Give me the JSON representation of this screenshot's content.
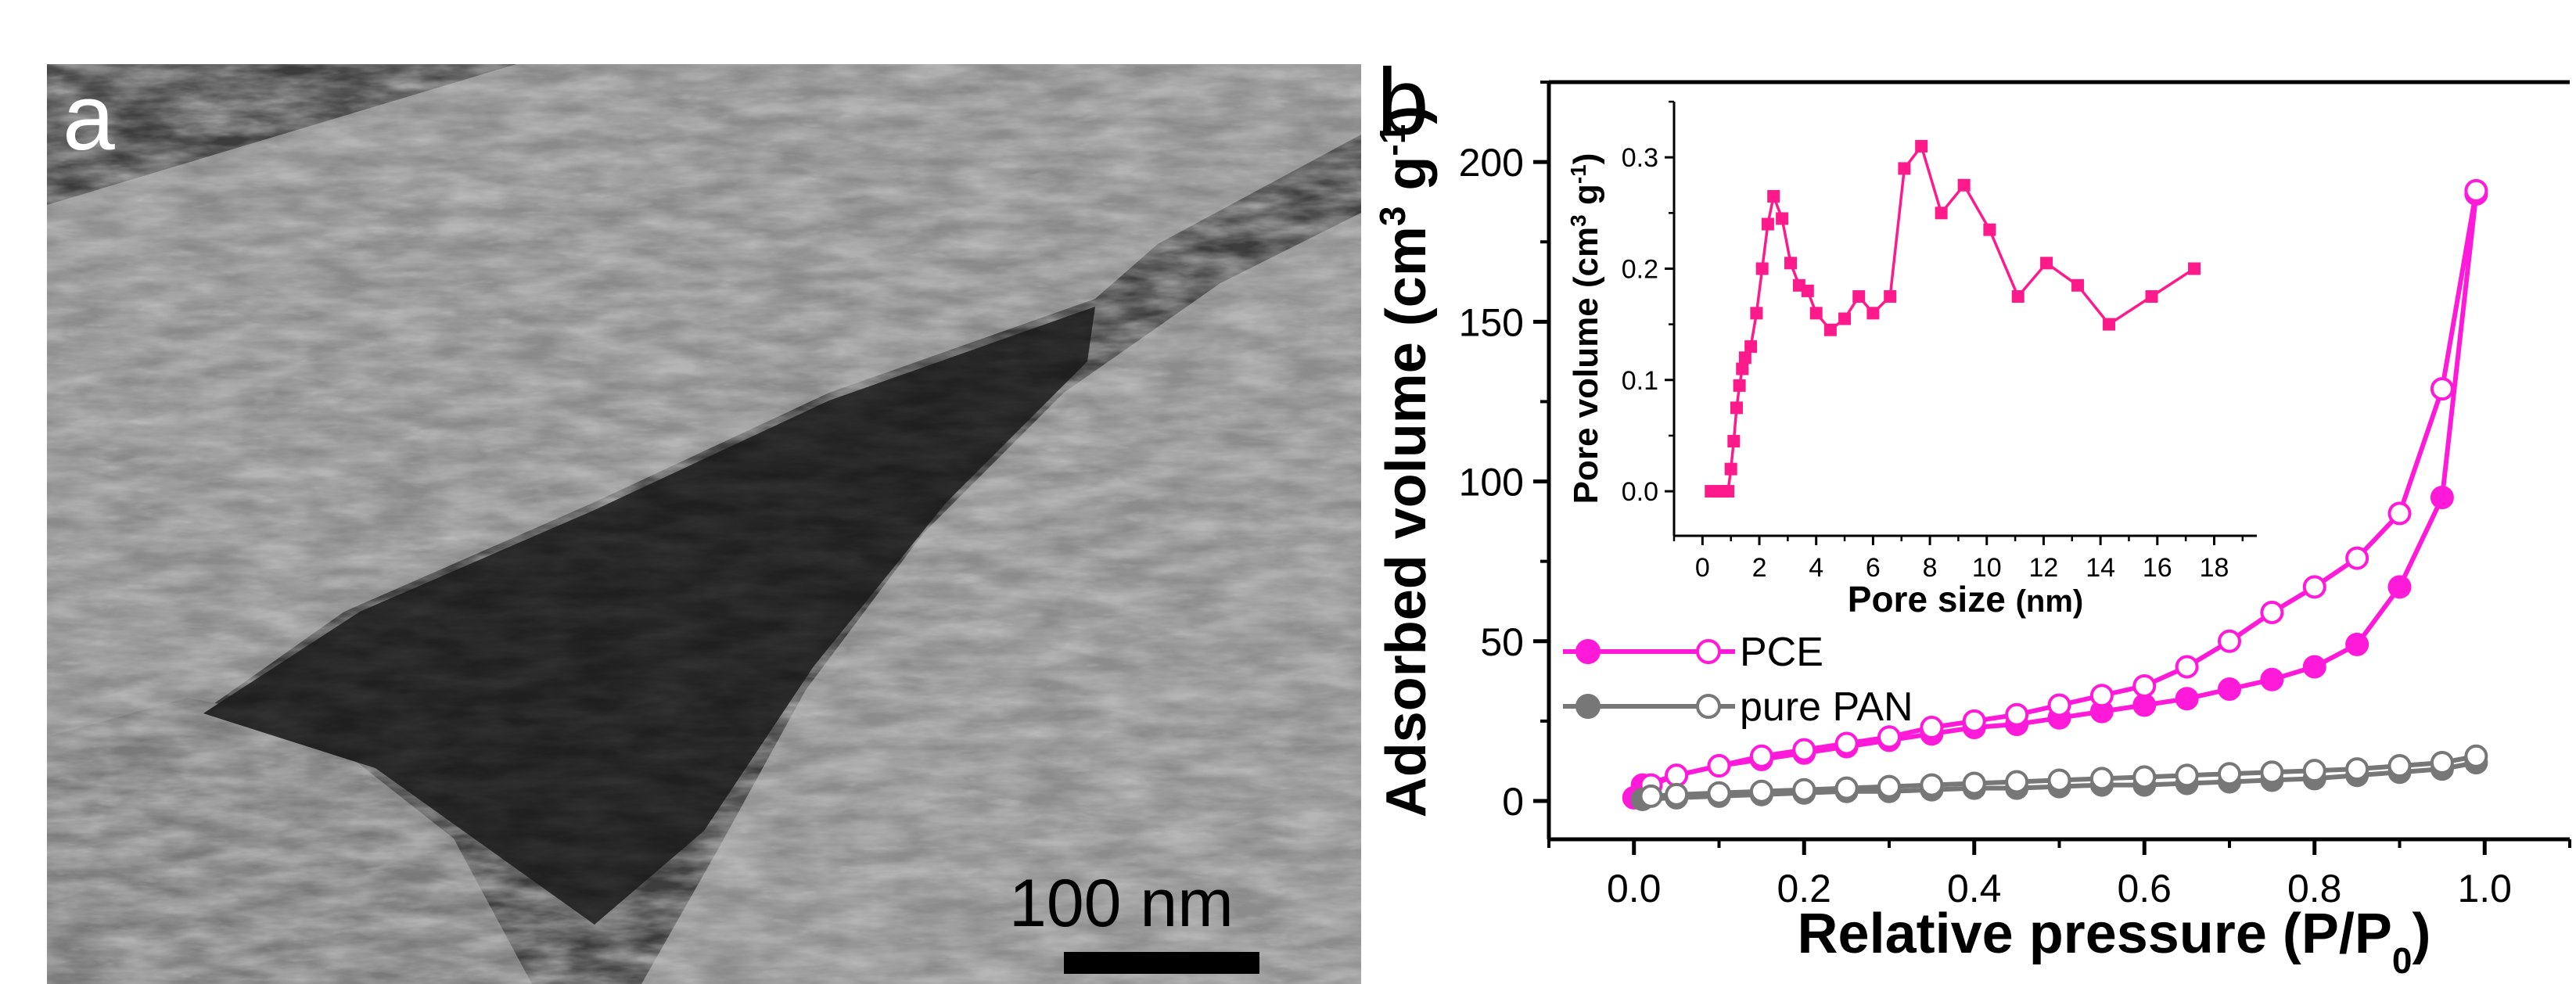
{
  "panel_a": {
    "letter": "a",
    "scale_label": "100 nm"
  },
  "panel_b": {
    "letter": "b"
  },
  "chart_data": [
    {
      "type": "line",
      "xlabel_main": "Relative pressure (P/P",
      "xlabel_sub": "0",
      "xlabel_end": ")",
      "ylabel_main": "Adsorbed volume (cm",
      "ylabel_sup1": "3",
      "ylabel_mid": " g",
      "ylabel_sup2": "-1",
      "ylabel_end": ")",
      "xlim": [
        -0.1,
        1.1
      ],
      "ylim": [
        -12,
        225
      ],
      "xticks": [
        "0.0",
        "0.2",
        "0.4",
        "0.6",
        "0.8",
        "1.0"
      ],
      "xtick_values": [
        0,
        0.2,
        0.4,
        0.6,
        0.8,
        1.0
      ],
      "yticks": [
        "0",
        "50",
        "100",
        "150",
        "200"
      ],
      "ytick_values": [
        0,
        50,
        100,
        150,
        200
      ],
      "legend_position": "left-middle",
      "series": [
        {
          "name": "PCE",
          "color": "#ff1ad9",
          "branch": "adsorption",
          "marker": "filled-circle",
          "x": [
            0.0,
            0.01,
            0.05,
            0.1,
            0.15,
            0.2,
            0.25,
            0.3,
            0.35,
            0.4,
            0.45,
            0.5,
            0.55,
            0.6,
            0.65,
            0.7,
            0.75,
            0.8,
            0.85,
            0.9,
            0.95,
            0.99
          ],
          "y": [
            1,
            5,
            8,
            11,
            13,
            15,
            17,
            19,
            21,
            23,
            24,
            26,
            28,
            30,
            32,
            35,
            38,
            42,
            49,
            67,
            95,
            190
          ]
        },
        {
          "name": "PCE",
          "color": "#ff1ad9",
          "branch": "desorption",
          "marker": "open-circle",
          "x": [
            0.99,
            0.95,
            0.9,
            0.85,
            0.8,
            0.75,
            0.7,
            0.65,
            0.6,
            0.55,
            0.5,
            0.45,
            0.4,
            0.35,
            0.3,
            0.25,
            0.2,
            0.15,
            0.1,
            0.05,
            0.02
          ],
          "y": [
            191,
            129,
            90,
            76,
            67,
            59,
            50,
            42,
            36,
            33,
            30,
            27,
            25,
            23,
            20,
            18,
            16,
            14,
            11,
            8,
            5
          ]
        },
        {
          "name": "pure PAN",
          "color": "#777777",
          "branch": "adsorption",
          "marker": "filled-circle",
          "x": [
            0.01,
            0.05,
            0.1,
            0.15,
            0.2,
            0.25,
            0.3,
            0.35,
            0.4,
            0.45,
            0.5,
            0.55,
            0.6,
            0.65,
            0.7,
            0.75,
            0.8,
            0.85,
            0.9,
            0.95,
            0.99
          ],
          "y": [
            0.5,
            1,
            1.5,
            2,
            2.5,
            3,
            3,
            3.5,
            4,
            4,
            4.5,
            5,
            5,
            5.5,
            6,
            6.5,
            7,
            8,
            9,
            10,
            12
          ]
        },
        {
          "name": "pure PAN",
          "color": "#777777",
          "branch": "desorption",
          "marker": "open-circle",
          "x": [
            0.99,
            0.95,
            0.9,
            0.85,
            0.8,
            0.75,
            0.7,
            0.65,
            0.6,
            0.55,
            0.5,
            0.45,
            0.4,
            0.35,
            0.3,
            0.25,
            0.2,
            0.15,
            0.1,
            0.05,
            0.02
          ],
          "y": [
            14,
            12,
            11,
            10,
            9.5,
            9,
            8.5,
            8,
            7.5,
            7,
            6.5,
            6,
            5.5,
            5,
            4.5,
            4,
            3.5,
            3,
            2.5,
            2,
            1.5
          ]
        }
      ],
      "legend": [
        {
          "name": "PCE",
          "color": "#ff1ad9"
        },
        {
          "name": "pure PAN",
          "color": "#777777"
        }
      ]
    },
    {
      "type": "line",
      "xlabel_main": "Pore size ",
      "xlabel_unit": "(nm)",
      "ylabel_main": "Pore volume (cm",
      "ylabel_sup1": "3",
      "ylabel_mid": " g",
      "ylabel_sup2": "-1",
      "ylabel_end": ")",
      "xlim": [
        -1,
        19.5
      ],
      "ylim": [
        -0.04,
        0.35
      ],
      "xticks": [
        "0",
        "2",
        "4",
        "6",
        "8",
        "10",
        "12",
        "14",
        "16",
        "18"
      ],
      "xtick_values": [
        0,
        2,
        4,
        6,
        8,
        10,
        12,
        14,
        16,
        18
      ],
      "yticks": [
        "0.0",
        "0.1",
        "0.2",
        "0.3"
      ],
      "ytick_values": [
        0,
        0.1,
        0.2,
        0.3
      ],
      "series": [
        {
          "color": "#ff1a8c",
          "marker": "filled-square",
          "x": [
            0.3,
            0.5,
            0.7,
            0.9,
            1.0,
            1.1,
            1.2,
            1.3,
            1.4,
            1.5,
            1.7,
            1.9,
            2.1,
            2.3,
            2.5,
            2.8,
            3.1,
            3.4,
            3.7,
            4.0,
            4.5,
            5.0,
            5.5,
            6.0,
            6.6,
            7.1,
            7.7,
            8.4,
            9.2,
            10.1,
            11.1,
            12.1,
            13.2,
            14.3,
            15.8,
            17.3
          ],
          "y": [
            0.0,
            0.0,
            0.0,
            0.0,
            0.02,
            0.045,
            0.075,
            0.095,
            0.11,
            0.12,
            0.13,
            0.16,
            0.2,
            0.24,
            0.265,
            0.245,
            0.205,
            0.185,
            0.18,
            0.16,
            0.145,
            0.155,
            0.175,
            0.16,
            0.175,
            0.29,
            0.31,
            0.25,
            0.275,
            0.235,
            0.175,
            0.205,
            0.185,
            0.15,
            0.175,
            0.2
          ]
        }
      ]
    }
  ]
}
